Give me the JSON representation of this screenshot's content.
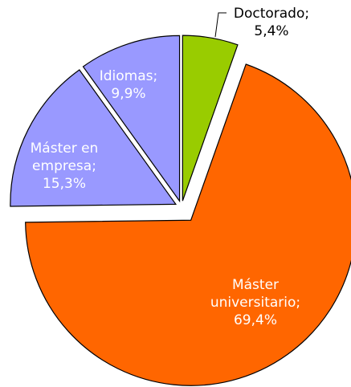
{
  "chart_data": {
    "type": "pie",
    "categories": [
      "Doctorado;",
      "Máster universitario;",
      "Máster en empresa;",
      "Idiomas;"
    ],
    "values": [
      5.4,
      69.4,
      15.3,
      9.9
    ],
    "value_labels": [
      "5,4%",
      "69,4%",
      "15,3%",
      "9,9%"
    ],
    "colors": [
      "#99cc00",
      "#ff6600",
      "#9999ff",
      "#9999ff"
    ]
  }
}
